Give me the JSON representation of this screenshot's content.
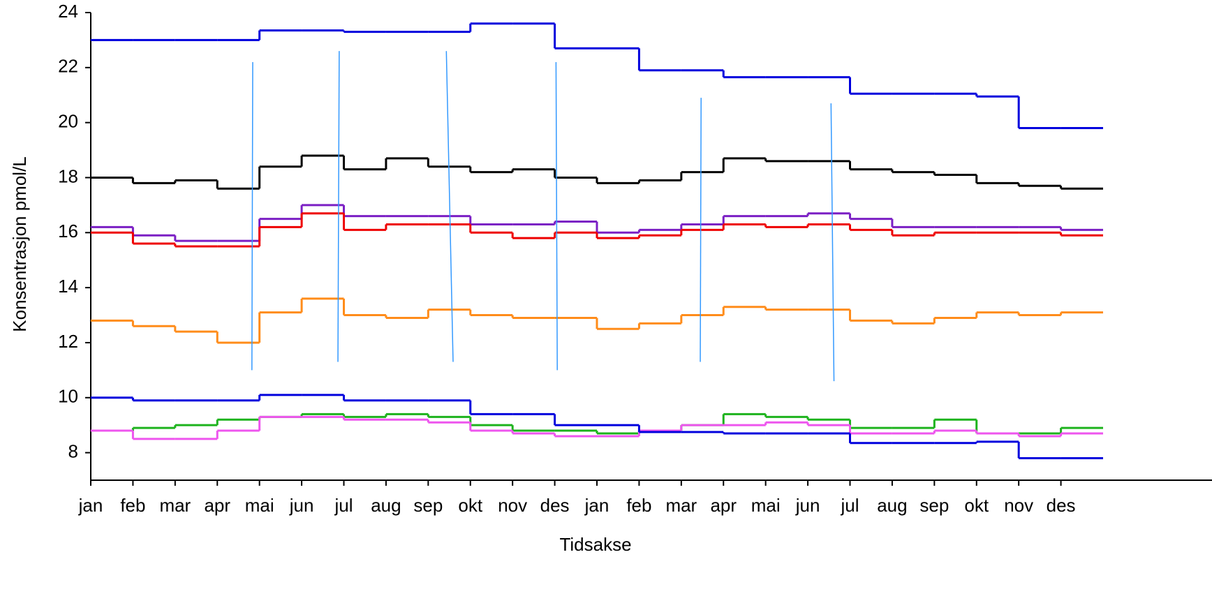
{
  "chart_data": {
    "type": "step",
    "xlabel": "Tidsakse",
    "ylabel": "Konsentrasjon pmol/L",
    "xlim": [
      0,
      24
    ],
    "xticks": [
      {
        "value": 0,
        "label": "jan"
      },
      {
        "value": 1,
        "label": "feb"
      },
      {
        "value": 2,
        "label": "mar"
      },
      {
        "value": 3,
        "label": "apr"
      },
      {
        "value": 4,
        "label": "mai"
      },
      {
        "value": 5,
        "label": "jun"
      },
      {
        "value": 6,
        "label": "jul"
      },
      {
        "value": 7,
        "label": "aug"
      },
      {
        "value": 8,
        "label": "sep"
      },
      {
        "value": 9,
        "label": "okt"
      },
      {
        "value": 10,
        "label": "nov"
      },
      {
        "value": 11,
        "label": "des"
      },
      {
        "value": 12,
        "label": "jan"
      },
      {
        "value": 13,
        "label": "feb"
      },
      {
        "value": 14,
        "label": "mar"
      },
      {
        "value": 15,
        "label": "apr"
      },
      {
        "value": 16,
        "label": "mai"
      },
      {
        "value": 17,
        "label": "jun"
      },
      {
        "value": 18,
        "label": "jul"
      },
      {
        "value": 19,
        "label": "aug"
      },
      {
        "value": 20,
        "label": "sep"
      },
      {
        "value": 21,
        "label": "okt"
      },
      {
        "value": 22,
        "label": "nov"
      },
      {
        "value": 23,
        "label": "des"
      }
    ],
    "ylim": [
      7,
      24
    ],
    "yticks": [
      8,
      10,
      12,
      14,
      16,
      18,
      20,
      22,
      24
    ],
    "x": [
      0,
      1,
      2,
      3,
      4,
      5,
      6,
      7,
      8,
      9,
      10,
      11,
      12,
      13,
      14,
      15,
      16,
      17,
      18,
      19,
      20,
      21,
      22,
      23
    ],
    "series": [
      {
        "color": "#0000dd",
        "values": [
          23.0,
          23.0,
          23.0,
          23.0,
          23.35,
          23.35,
          23.3,
          23.3,
          23.3,
          23.6,
          23.6,
          22.7,
          22.7,
          21.9,
          21.9,
          21.65,
          21.65,
          21.65,
          21.05,
          21.05,
          21.05,
          20.95,
          19.8,
          19.8
        ]
      },
      {
        "color": "#000000",
        "values": [
          18.0,
          17.8,
          17.9,
          17.6,
          18.4,
          18.8,
          18.3,
          18.7,
          18.4,
          18.2,
          18.3,
          18.0,
          17.8,
          17.9,
          18.2,
          18.7,
          18.6,
          18.6,
          18.3,
          18.2,
          18.1,
          17.8,
          17.7,
          17.6
        ]
      },
      {
        "color": "#7b1fc4",
        "values": [
          16.2,
          15.9,
          15.7,
          15.7,
          16.5,
          17.0,
          16.6,
          16.6,
          16.6,
          16.3,
          16.3,
          16.4,
          16.0,
          16.1,
          16.3,
          16.6,
          16.6,
          16.7,
          16.5,
          16.2,
          16.2,
          16.2,
          16.2,
          16.1
        ]
      },
      {
        "color": "#ee0000",
        "values": [
          16.0,
          15.6,
          15.5,
          15.5,
          16.2,
          16.7,
          16.1,
          16.3,
          16.3,
          16.0,
          15.8,
          16.0,
          15.8,
          15.9,
          16.1,
          16.3,
          16.2,
          16.3,
          16.1,
          15.9,
          16.0,
          16.0,
          16.0,
          15.9
        ]
      },
      {
        "color": "#ff8c1a",
        "values": [
          12.8,
          12.6,
          12.4,
          12.0,
          13.1,
          13.6,
          13.0,
          12.9,
          13.2,
          13.0,
          12.9,
          12.9,
          12.5,
          12.7,
          13.0,
          13.3,
          13.2,
          13.2,
          12.8,
          12.7,
          12.9,
          13.1,
          13.0,
          13.1
        ]
      },
      {
        "color": "#1db31d",
        "values": [
          8.8,
          8.9,
          9.0,
          9.2,
          9.3,
          9.4,
          9.3,
          9.4,
          9.3,
          9.0,
          8.8,
          8.8,
          8.7,
          8.8,
          9.0,
          9.4,
          9.3,
          9.2,
          8.9,
          8.9,
          9.2,
          8.7,
          8.7,
          8.9
        ]
      },
      {
        "color": "#ee55ee",
        "values": [
          8.8,
          8.5,
          8.5,
          8.8,
          9.3,
          9.3,
          9.2,
          9.2,
          9.1,
          8.8,
          8.7,
          8.6,
          8.6,
          8.8,
          9.0,
          9.0,
          9.1,
          9.0,
          8.7,
          8.7,
          8.8,
          8.7,
          8.6,
          8.7
        ]
      },
      {
        "color": "#0000dd",
        "values": [
          10.0,
          9.9,
          9.9,
          9.9,
          10.1,
          10.1,
          9.9,
          9.9,
          9.9,
          9.4,
          9.4,
          9.0,
          9.0,
          8.75,
          8.75,
          8.7,
          8.7,
          8.7,
          8.35,
          8.35,
          8.35,
          8.4,
          7.8,
          7.8
        ]
      }
    ],
    "segments_color": "#3399ff",
    "segments": [
      {
        "x": [
          3.84,
          3.82
        ],
        "values": [
          22.2,
          11.0
        ]
      },
      {
        "x": [
          5.89,
          5.86
        ],
        "values": [
          22.6,
          11.3
        ]
      },
      {
        "x": [
          8.43,
          8.59
        ],
        "values": [
          22.6,
          11.3
        ]
      },
      {
        "x": [
          11.03,
          11.06
        ],
        "values": [
          22.2,
          11.0
        ]
      },
      {
        "x": [
          14.47,
          14.45
        ],
        "values": [
          20.9,
          11.3
        ]
      },
      {
        "x": [
          17.55,
          17.62
        ],
        "values": [
          20.7,
          10.6
        ]
      }
    ]
  }
}
